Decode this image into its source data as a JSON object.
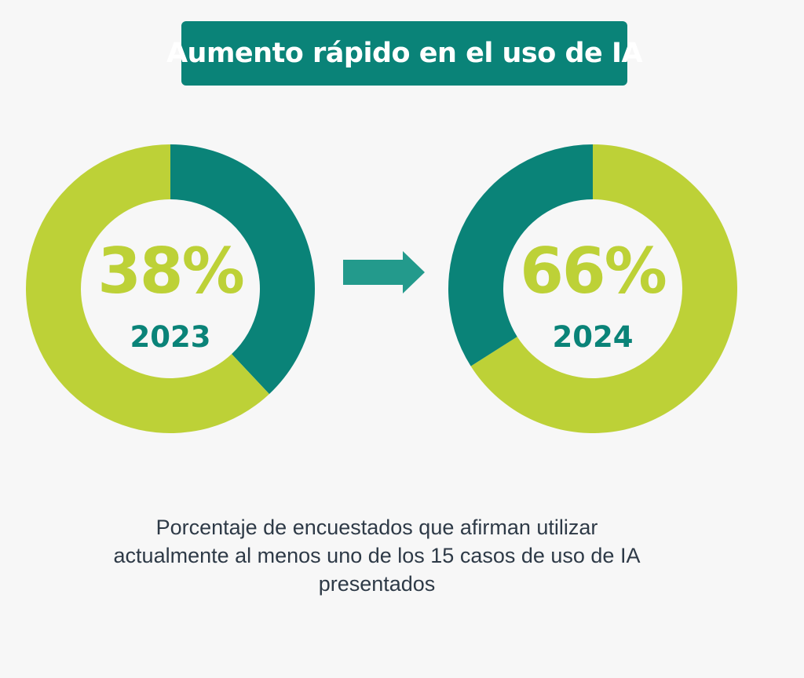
{
  "colors": {
    "background": "#f7f7f7",
    "teal": "#0a8378",
    "lime": "#bdd137",
    "arrow": "#239a8c",
    "caption_text": "#2e3a47"
  },
  "title": "Aumento rápido en el uso de IA",
  "arrow_icon": "right-arrow-icon",
  "chart_data": [
    {
      "type": "pie",
      "variant": "donut",
      "value_label": "38%",
      "year_label": "2023",
      "slices": [
        {
          "name": "",
          "value": 38,
          "color": "#0a8378"
        },
        {
          "name": "",
          "value": 62,
          "color": "#bdd137"
        }
      ],
      "start": "top, clockwise",
      "value_color": "#bdd137",
      "year_color": "#0a8378"
    },
    {
      "type": "pie",
      "variant": "donut",
      "value_label": "66%",
      "year_label": "2024",
      "slices": [
        {
          "name": "",
          "value": 66,
          "color": "#bdd137"
        },
        {
          "name": "",
          "value": 34,
          "color": "#0a8378"
        }
      ],
      "start": "top, clockwise",
      "value_color": "#bdd137",
      "year_color": "#0a8378"
    }
  ],
  "caption": {
    "lines": [
      "Porcentaje de encuestados que afirman utilizar",
      "actualmente al menos uno de los 15 casos de uso de IA",
      "presentados"
    ]
  }
}
